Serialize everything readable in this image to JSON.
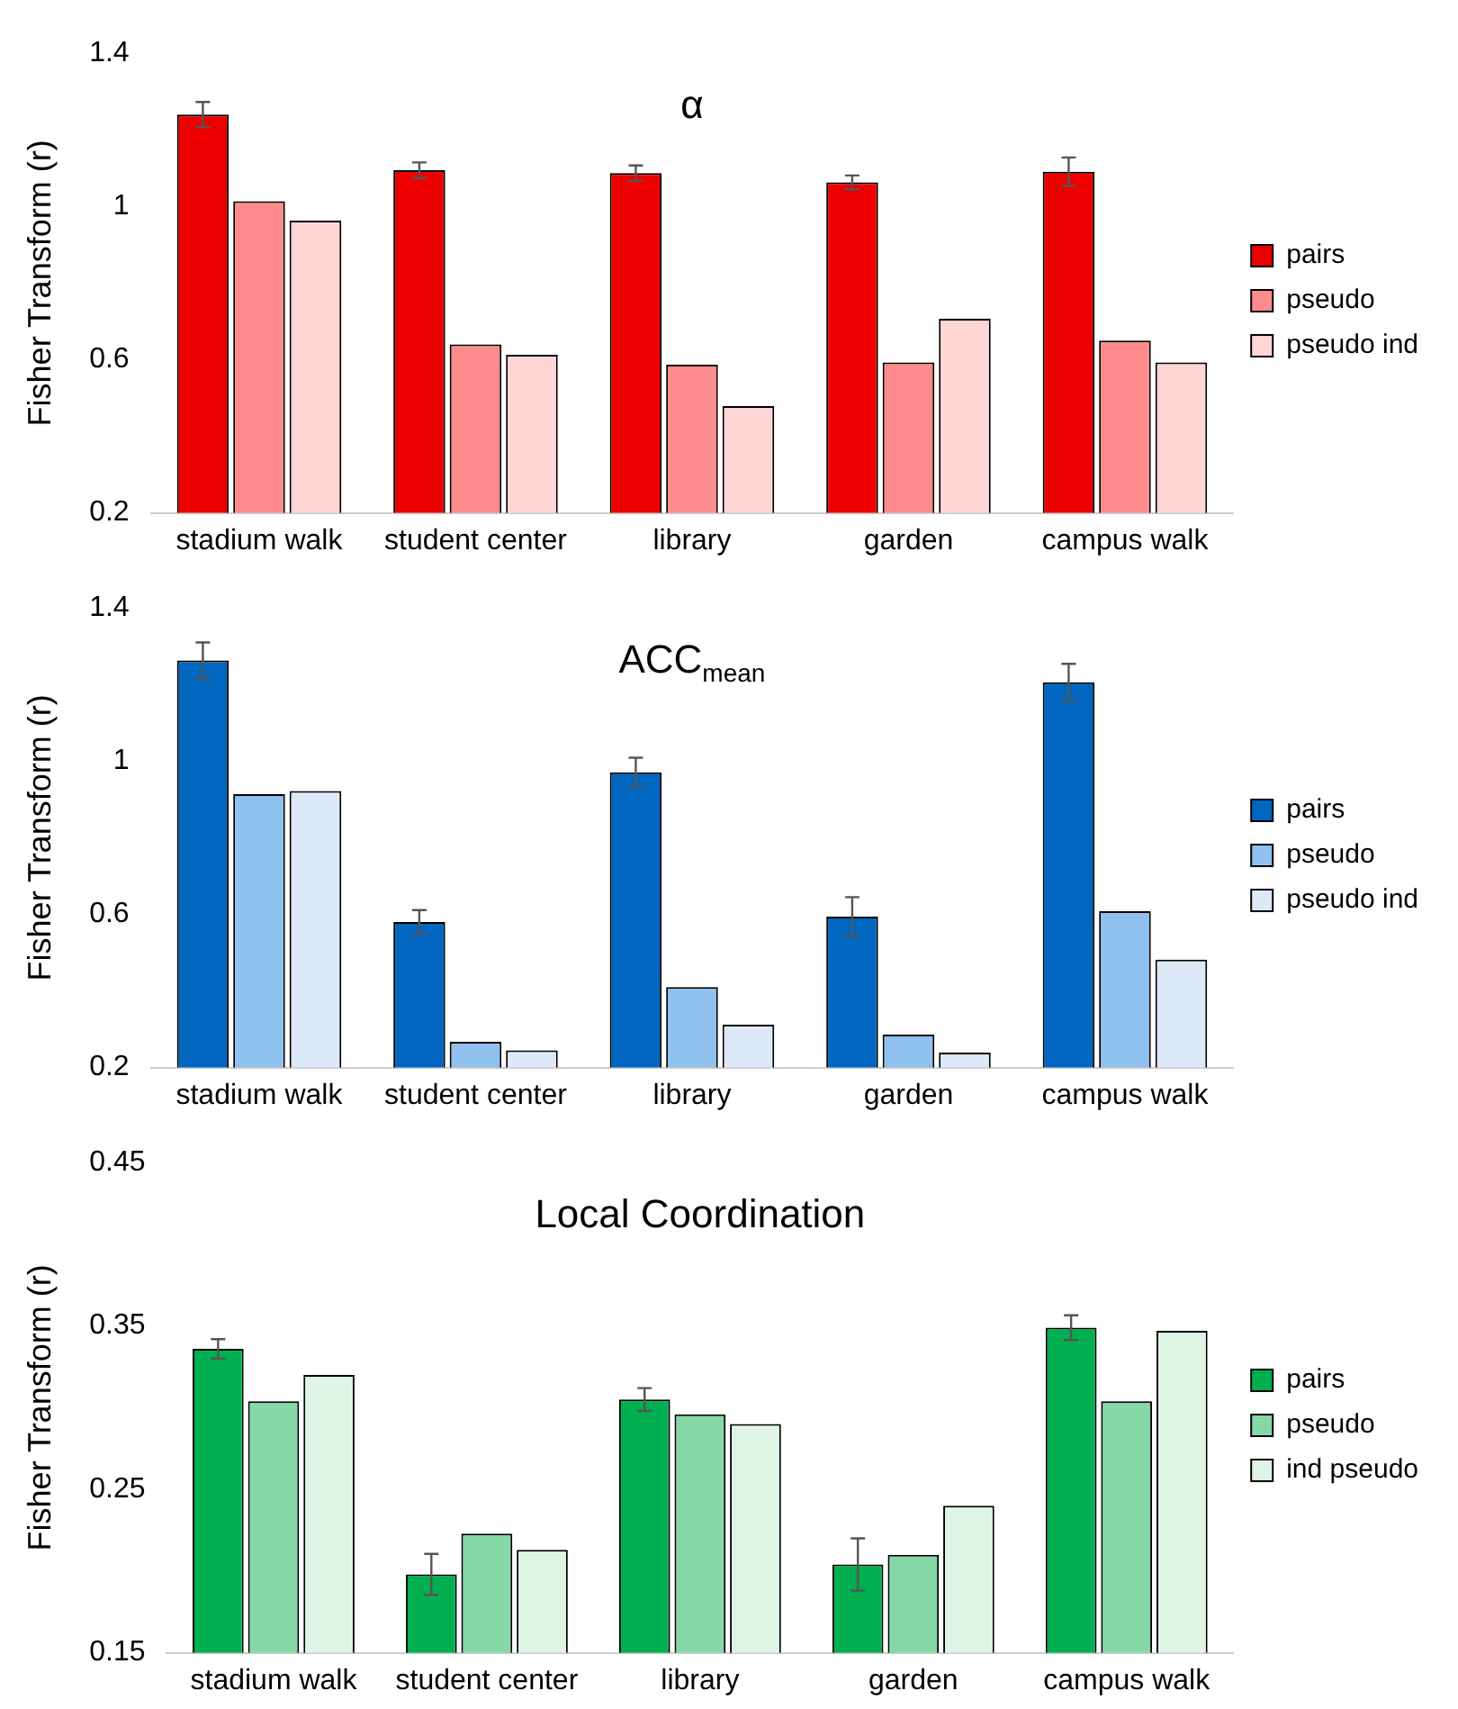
{
  "chart_data": [
    {
      "type": "bar",
      "title": "α",
      "ylabel": "Fisher Transform (r)",
      "categories": [
        "stadium walk",
        "student center",
        "library",
        "garden",
        "campus walk"
      ],
      "ylim": [
        0.2,
        1.4
      ],
      "yticks": [
        0.2,
        0.6,
        1,
        1.4
      ],
      "legend": "right",
      "series": [
        {
          "name": "pairs",
          "color": "#ee0000",
          "values": [
            1.24,
            1.095,
            1.087,
            1.063,
            1.091
          ],
          "errors": [
            0.033,
            0.02,
            0.02,
            0.018,
            0.037
          ]
        },
        {
          "name": "pseudo",
          "color": "#ff8c8c",
          "values": [
            1.014,
            0.64,
            0.587,
            0.593,
            0.65
          ]
        },
        {
          "name": "pseudo ind",
          "color": "#ffd6d6",
          "values": [
            0.963,
            0.613,
            0.479,
            0.707,
            0.593
          ]
        }
      ]
    },
    {
      "type": "bar",
      "title": "ACC$_{mean}$",
      "ylabel": "Fisher Transform (r)",
      "categories": [
        "stadium walk",
        "student center",
        "library",
        "garden",
        "campus walk"
      ],
      "ylim": [
        0.2,
        1.4
      ],
      "yticks": [
        0.2,
        0.6,
        1,
        1.4
      ],
      "legend": "right",
      "series": [
        {
          "name": "pairs",
          "color": "#0066c0",
          "values": [
            1.263,
            0.58,
            0.971,
            0.594,
            1.206
          ],
          "errors": [
            0.047,
            0.031,
            0.038,
            0.051,
            0.048
          ]
        },
        {
          "name": "pseudo",
          "color": "#8fc0ee",
          "values": [
            0.914,
            0.267,
            0.41,
            0.286,
            0.608
          ]
        },
        {
          "name": "pseudo ind",
          "color": "#dde9f8",
          "values": [
            0.922,
            0.245,
            0.312,
            0.239,
            0.482
          ]
        }
      ]
    },
    {
      "type": "bar",
      "title": "Local Coordination",
      "ylabel": "Fisher Transform (r)",
      "categories": [
        "stadium walk",
        "student center",
        "library",
        "garden",
        "campus walk"
      ],
      "ylim": [
        0.15,
        0.45
      ],
      "yticks": [
        0.15,
        0.25,
        0.35,
        0.45
      ],
      "legend": "right",
      "series": [
        {
          "name": "pairs",
          "color": "#00b050",
          "values": [
            0.336,
            0.198,
            0.305,
            0.204,
            0.349
          ],
          "errors": [
            0.006,
            0.0125,
            0.007,
            0.016,
            0.0076
          ]
        },
        {
          "name": "pseudo",
          "color": "#85d8a5",
          "values": [
            0.304,
            0.223,
            0.296,
            0.21,
            0.304
          ]
        },
        {
          "name": "ind pseudo",
          "color": "#def5e6",
          "values": [
            0.32,
            0.213,
            0.29,
            0.24,
            0.347
          ]
        }
      ]
    }
  ]
}
